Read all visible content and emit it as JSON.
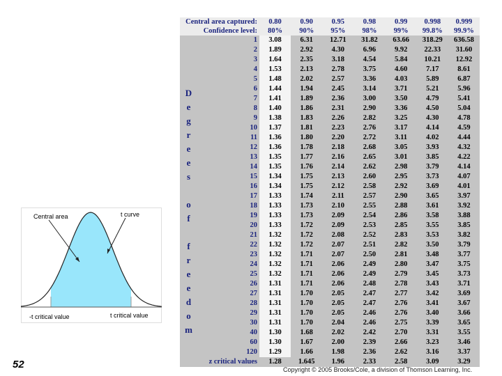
{
  "slide_number": "52",
  "copyright": "Copyright © 2005 Brooks/Cole, a division of Thomson Learning, Inc.",
  "figure": {
    "central_area": "Central area",
    "t_curve": "t curve",
    "neg_critical": "-t critical value",
    "pos_critical": "t critical value"
  },
  "table": {
    "side_label": "Degrees of freedom",
    "header_rows": [
      [
        "Central area captured:",
        "0.80",
        "0.90",
        "0.95",
        "0.98",
        "0.99",
        "0.998",
        "0.999"
      ],
      [
        "Confidence level:",
        "80%",
        "90%",
        "95%",
        "98%",
        "99%",
        "99.8%",
        "99.9%"
      ]
    ],
    "rows": [
      [
        "1",
        "3.08",
        "6.31",
        "12.71",
        "31.82",
        "63.66",
        "318.29",
        "636.58"
      ],
      [
        "2",
        "1.89",
        "2.92",
        "4.30",
        "6.96",
        "9.92",
        "22.33",
        "31.60"
      ],
      [
        "3",
        "1.64",
        "2.35",
        "3.18",
        "4.54",
        "5.84",
        "10.21",
        "12.92"
      ],
      [
        "4",
        "1.53",
        "2.13",
        "2.78",
        "3.75",
        "4.60",
        "7.17",
        "8.61"
      ],
      [
        "5",
        "1.48",
        "2.02",
        "2.57",
        "3.36",
        "4.03",
        "5.89",
        "6.87"
      ],
      [
        "6",
        "1.44",
        "1.94",
        "2.45",
        "3.14",
        "3.71",
        "5.21",
        "5.96"
      ],
      [
        "7",
        "1.41",
        "1.89",
        "2.36",
        "3.00",
        "3.50",
        "4.79",
        "5.41"
      ],
      [
        "8",
        "1.40",
        "1.86",
        "2.31",
        "2.90",
        "3.36",
        "4.50",
        "5.04"
      ],
      [
        "9",
        "1.38",
        "1.83",
        "2.26",
        "2.82",
        "3.25",
        "4.30",
        "4.78"
      ],
      [
        "10",
        "1.37",
        "1.81",
        "2.23",
        "2.76",
        "3.17",
        "4.14",
        "4.59"
      ],
      [
        "11",
        "1.36",
        "1.80",
        "2.20",
        "2.72",
        "3.11",
        "4.02",
        "4.44"
      ],
      [
        "12",
        "1.36",
        "1.78",
        "2.18",
        "2.68",
        "3.05",
        "3.93",
        "4.32"
      ],
      [
        "13",
        "1.35",
        "1.77",
        "2.16",
        "2.65",
        "3.01",
        "3.85",
        "4.22"
      ],
      [
        "14",
        "1.35",
        "1.76",
        "2.14",
        "2.62",
        "2.98",
        "3.79",
        "4.14"
      ],
      [
        "15",
        "1.34",
        "1.75",
        "2.13",
        "2.60",
        "2.95",
        "3.73",
        "4.07"
      ],
      [
        "16",
        "1.34",
        "1.75",
        "2.12",
        "2.58",
        "2.92",
        "3.69",
        "4.01"
      ],
      [
        "17",
        "1.33",
        "1.74",
        "2.11",
        "2.57",
        "2.90",
        "3.65",
        "3.97"
      ],
      [
        "18",
        "1.33",
        "1.73",
        "2.10",
        "2.55",
        "2.88",
        "3.61",
        "3.92"
      ],
      [
        "19",
        "1.33",
        "1.73",
        "2.09",
        "2.54",
        "2.86",
        "3.58",
        "3.88"
      ],
      [
        "20",
        "1.33",
        "1.72",
        "2.09",
        "2.53",
        "2.85",
        "3.55",
        "3.85"
      ],
      [
        "21",
        "1.32",
        "1.72",
        "2.08",
        "2.52",
        "2.83",
        "3.53",
        "3.82"
      ],
      [
        "22",
        "1.32",
        "1.72",
        "2.07",
        "2.51",
        "2.82",
        "3.50",
        "3.79"
      ],
      [
        "23",
        "1.32",
        "1.71",
        "2.07",
        "2.50",
        "2.81",
        "3.48",
        "3.77"
      ],
      [
        "24",
        "1.32",
        "1.71",
        "2.06",
        "2.49",
        "2.80",
        "3.47",
        "3.75"
      ],
      [
        "25",
        "1.32",
        "1.71",
        "2.06",
        "2.49",
        "2.79",
        "3.45",
        "3.73"
      ],
      [
        "26",
        "1.31",
        "1.71",
        "2.06",
        "2.48",
        "2.78",
        "3.43",
        "3.71"
      ],
      [
        "27",
        "1.31",
        "1.70",
        "2.05",
        "2.47",
        "2.77",
        "3.42",
        "3.69"
      ],
      [
        "28",
        "1.31",
        "1.70",
        "2.05",
        "2.47",
        "2.76",
        "3.41",
        "3.67"
      ],
      [
        "29",
        "1.31",
        "1.70",
        "2.05",
        "2.46",
        "2.76",
        "3.40",
        "3.66"
      ],
      [
        "30",
        "1.31",
        "1.70",
        "2.04",
        "2.46",
        "2.75",
        "3.39",
        "3.65"
      ],
      [
        "40",
        "1.30",
        "1.68",
        "2.02",
        "2.42",
        "2.70",
        "3.31",
        "3.55"
      ],
      [
        "60",
        "1.30",
        "1.67",
        "2.00",
        "2.39",
        "2.66",
        "3.23",
        "3.46"
      ],
      [
        "120",
        "1.29",
        "1.66",
        "1.98",
        "2.36",
        "2.62",
        "3.16",
        "3.37"
      ]
    ],
    "footer_row": [
      "z critical values",
      "1.28",
      "1.645",
      "1.96",
      "2.33",
      "2.58",
      "3.09",
      "3.29"
    ]
  }
}
